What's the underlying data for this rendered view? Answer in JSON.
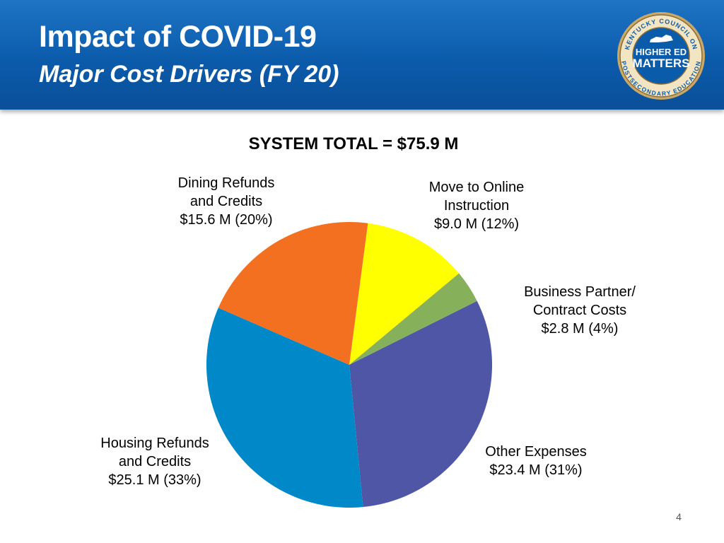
{
  "header": {
    "title": "Impact of COVID-19",
    "subtitle": "Major Cost Drivers (FY 20)",
    "logo": {
      "ring_top": "KENTUCKY COUNCIL ON",
      "ring_bottom": "POSTSECONDARY EDUCATION",
      "line1": "HIGHER ED",
      "line2": "MATTERS"
    }
  },
  "colors": {
    "header_blue": "#0b5bab",
    "housing": "#0088c8",
    "dining": "#f37021",
    "online": "#ffff00",
    "business": "#86b05a",
    "other": "#4f56a6"
  },
  "chart_data": {
    "type": "pie",
    "title": "SYSTEM TOTAL = $75.9 M",
    "total": 75.9,
    "unit": "$M",
    "slices": [
      {
        "name": "Move to Online Instruction",
        "label_lines": [
          "Move to Online",
          "Instruction",
          "$9.0 M (12%)"
        ],
        "value": 9.0,
        "percent": 12,
        "color": "#ffff00"
      },
      {
        "name": "Business Partner/ Contract Costs",
        "label_lines": [
          "Business Partner/",
          "Contract Costs",
          "$2.8 M (4%)"
        ],
        "value": 2.8,
        "percent": 4,
        "color": "#86b05a"
      },
      {
        "name": "Other Expenses",
        "label_lines": [
          "Other Expenses",
          "$23.4 M (31%)"
        ],
        "value": 23.4,
        "percent": 31,
        "color": "#4f56a6"
      },
      {
        "name": "Housing Refunds and Credits",
        "label_lines": [
          "Housing Refunds",
          "and Credits",
          "$25.1 M (33%)"
        ],
        "value": 25.1,
        "percent": 33,
        "color": "#0088c8"
      },
      {
        "name": "Dining Refunds and Credits",
        "label_lines": [
          "Dining Refunds",
          "and Credits",
          "$15.6 M (20%)"
        ],
        "value": 15.6,
        "percent": 20,
        "color": "#f37021"
      }
    ]
  },
  "footer": {
    "page_number": "4"
  }
}
